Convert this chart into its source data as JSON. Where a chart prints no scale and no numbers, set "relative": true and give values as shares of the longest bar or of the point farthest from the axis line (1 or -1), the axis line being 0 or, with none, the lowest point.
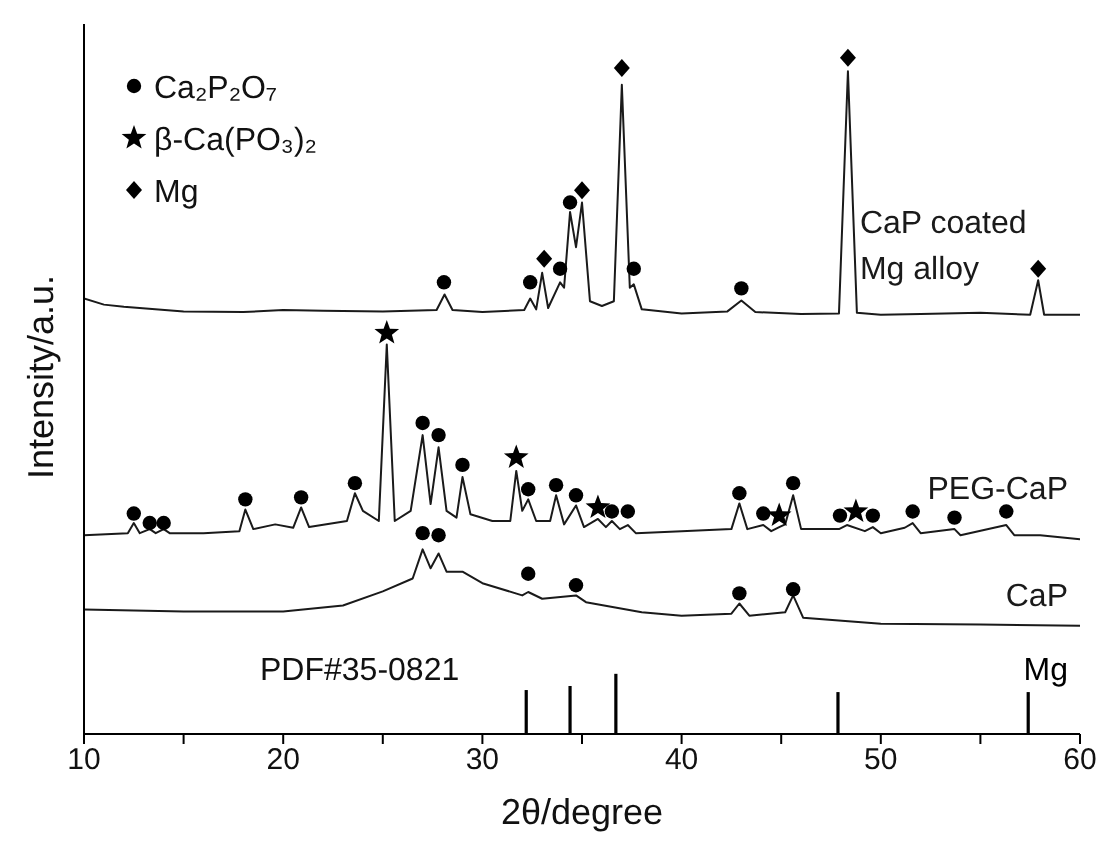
{
  "chart_data": {
    "type": "line",
    "relative": true,
    "xlabel": "2θ/degree",
    "ylabel": "Intensity/a.u.",
    "xlim": [
      10,
      60
    ],
    "xticks": [
      10,
      {
        "value": 15,
        "label": null
      },
      20,
      {
        "value": 25,
        "label": null
      },
      30,
      {
        "value": 35,
        "label": null
      },
      40,
      {
        "value": 45,
        "label": null
      },
      50,
      {
        "value": 55,
        "label": null
      },
      60
    ],
    "legend": "top left",
    "annotations": [
      "PDF#35-0821"
    ],
    "series": [
      {
        "name": "CaP coated Mg alloy",
        "color": "#1a1a1a",
        "x": [
          10,
          11,
          12,
          15,
          18,
          20,
          22,
          25,
          27.7,
          28.1,
          28.5,
          30,
          32.1,
          32.4,
          32.7,
          33.0,
          33.3,
          33.9,
          34.1,
          34.4,
          34.7,
          35.0,
          35.4,
          36.0,
          36.6,
          37.0,
          37.4,
          37.6,
          38.0,
          40,
          42.3,
          43.0,
          43.7,
          46,
          47.9,
          48.35,
          48.8,
          50,
          52,
          55,
          57.5,
          57.9,
          58.2,
          60
        ],
        "values": [
          0.644,
          0.635,
          0.632,
          0.625,
          0.624,
          0.627,
          0.626,
          0.625,
          0.627,
          0.65,
          0.627,
          0.624,
          0.627,
          0.644,
          0.628,
          0.682,
          0.63,
          0.668,
          0.66,
          0.772,
          0.72,
          0.786,
          0.64,
          0.633,
          0.64,
          0.96,
          0.66,
          0.665,
          0.628,
          0.622,
          0.625,
          0.641,
          0.624,
          0.621,
          0.622,
          0.98,
          0.623,
          0.62,
          0.621,
          0.623,
          0.62,
          0.671,
          0.62,
          0.62
        ]
      },
      {
        "name": "PEG-CaP",
        "color": "#1a1a1a",
        "x": [
          10,
          12.2,
          12.5,
          12.8,
          13.3,
          13.6,
          14.0,
          14.3,
          16,
          17.8,
          18.1,
          18.5,
          19.6,
          20.5,
          20.9,
          21.3,
          23.2,
          23.6,
          24.0,
          24.8,
          25.2,
          25.6,
          26.4,
          27.0,
          27.4,
          27.8,
          28.2,
          28.7,
          29.0,
          29.4,
          30.5,
          31.4,
          31.7,
          32.0,
          32.3,
          32.7,
          33.4,
          33.7,
          34.1,
          34.7,
          35.1,
          35.8,
          36.2,
          36.5,
          36.9,
          37.3,
          37.7,
          40,
          42.5,
          42.9,
          43.3,
          44.1,
          44.5,
          44.9,
          45.2,
          45.6,
          46.0,
          47.9,
          48.3,
          49.2,
          49.6,
          50,
          51.2,
          51.6,
          52,
          53.7,
          54,
          56.3,
          56.7,
          58,
          60
        ],
        "values": [
          0.294,
          0.297,
          0.312,
          0.297,
          0.303,
          0.297,
          0.303,
          0.297,
          0.297,
          0.3,
          0.332,
          0.303,
          0.31,
          0.305,
          0.335,
          0.306,
          0.315,
          0.356,
          0.33,
          0.315,
          0.576,
          0.315,
          0.33,
          0.442,
          0.34,
          0.424,
          0.33,
          0.32,
          0.38,
          0.325,
          0.315,
          0.315,
          0.389,
          0.33,
          0.347,
          0.315,
          0.315,
          0.353,
          0.31,
          0.338,
          0.306,
          0.318,
          0.306,
          0.315,
          0.303,
          0.309,
          0.297,
          0.3,
          0.303,
          0.341,
          0.303,
          0.309,
          0.3,
          0.306,
          0.31,
          0.353,
          0.303,
          0.303,
          0.309,
          0.3,
          0.306,
          0.297,
          0.305,
          0.312,
          0.297,
          0.303,
          0.294,
          0.309,
          0.294,
          0.294,
          0.288
        ]
      },
      {
        "name": "CaP",
        "color": "#1a1a1a",
        "x": [
          10,
          15,
          20,
          23,
          25,
          26.5,
          27.0,
          27.4,
          27.8,
          28.2,
          29.0,
          30,
          32,
          32.3,
          33,
          34.7,
          35.2,
          38,
          40,
          42.5,
          42.9,
          43.4,
          45.2,
          45.6,
          46.1,
          50,
          55,
          60
        ],
        "values": [
          0.184,
          0.181,
          0.181,
          0.19,
          0.211,
          0.23,
          0.273,
          0.245,
          0.267,
          0.24,
          0.24,
          0.223,
          0.205,
          0.21,
          0.2,
          0.205,
          0.195,
          0.18,
          0.175,
          0.178,
          0.193,
          0.175,
          0.18,
          0.205,
          0.172,
          0.163,
          0.162,
          0.16
        ]
      },
      {
        "type": "bar",
        "name": "Mg",
        "color": "#000000",
        "x": [
          32.2,
          34.4,
          36.7,
          47.85,
          57.4
        ],
        "values": [
          0.065,
          0.071,
          0.089,
          0.062,
          0.062
        ]
      },
      {
        "type": "scatter",
        "name": "Ca₂P₂O₇",
        "color": "#000000",
        "marker": "circle",
        "x": [
          28.07,
          32.4,
          33.9,
          34.4,
          37.6,
          43.0,
          12.5,
          13.3,
          14.0,
          18.1,
          20.9,
          23.6,
          27.0,
          27.8,
          29.0,
          32.3,
          33.7,
          34.7,
          36.5,
          37.3,
          42.9,
          44.1,
          45.6,
          47.95,
          49.6,
          51.6,
          53.7,
          56.3,
          27.0,
          27.8,
          32.3,
          34.7,
          42.9,
          45.6
        ],
        "values": [
          0.668,
          0.668,
          0.688,
          0.786,
          0.688,
          0.659,
          0.326,
          0.312,
          0.312,
          0.347,
          0.35,
          0.371,
          0.46,
          0.442,
          0.398,
          0.362,
          0.368,
          0.353,
          0.329,
          0.329,
          0.356,
          0.326,
          0.371,
          0.323,
          0.323,
          0.329,
          0.32,
          0.329,
          0.297,
          0.294,
          0.237,
          0.22,
          0.208,
          0.214
        ]
      },
      {
        "type": "scatter",
        "name": "β-Ca(PO₃)₂",
        "color": "#000000",
        "marker": "star",
        "x": [
          25.2,
          31.7,
          35.8,
          44.9,
          48.75
        ],
        "values": [
          0.593,
          0.409,
          0.335,
          0.323,
          0.329
        ]
      },
      {
        "type": "scatter",
        "name": "Mg",
        "color": "#000000",
        "marker": "diamond",
        "x": [
          33.1,
          35.0,
          37.0,
          48.35,
          57.9
        ],
        "values": [
          0.703,
          0.804,
          0.985,
          1.0,
          0.688
        ]
      }
    ]
  }
}
